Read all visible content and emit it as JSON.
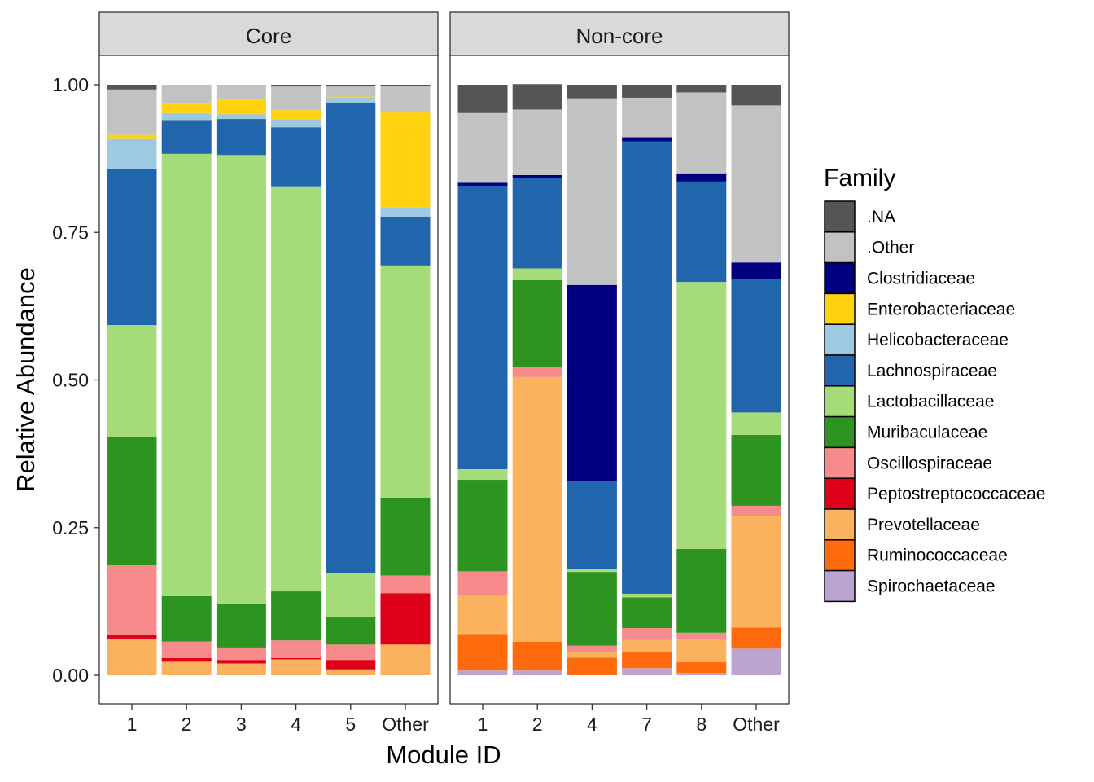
{
  "chart_data": {
    "type": "bar",
    "stacked": true,
    "ylabel": "Relative Abundance",
    "xlabel": "Module ID",
    "ylim": [
      0,
      1.05
    ],
    "yticks": [
      "0.00",
      "0.25",
      "0.50",
      "0.75",
      "1.00"
    ],
    "ytick_values": [
      0,
      0.25,
      0.5,
      0.75,
      1.0
    ],
    "legend_title": "Family",
    "legend_placement": "right",
    "families": [
      {
        "name": ".NA",
        "color": "#555555"
      },
      {
        "name": ".Other",
        "color": "#C2C2C2"
      },
      {
        "name": "Clostridiaceae",
        "color": "#000080"
      },
      {
        "name": "Enterobacteriaceae",
        "color": "#FFD10F"
      },
      {
        "name": "Helicobacteraceae",
        "color": "#9ECAE1"
      },
      {
        "name": "Lachnospiraceae",
        "color": "#2166AC"
      },
      {
        "name": "Lactobacillaceae",
        "color": "#A6DB7A"
      },
      {
        "name": "Muribaculaceae",
        "color": "#2E9421"
      },
      {
        "name": "Oscillospiraceae",
        "color": "#F78A8A"
      },
      {
        "name": "Peptostreptococcaceae",
        "color": "#DE0019"
      },
      {
        "name": "Prevotellaceae",
        "color": "#FAB25E"
      },
      {
        "name": "Ruminococcaceae",
        "color": "#FF6A0D"
      },
      {
        "name": "Spirochaetaceae",
        "color": "#BCA4D1"
      }
    ],
    "panels": [
      {
        "title": "Core",
        "categories": [
          "1",
          "2",
          "3",
          "4",
          "5",
          "Other"
        ],
        "stacks": [
          {
            "Prevotellaceae": 0.062,
            "Peptostreptococcaceae": 0.007,
            "Oscillospiraceae": 0.118,
            "Muribaculaceae": 0.216,
            "Lactobacillaceae": 0.19,
            "Lachnospiraceae": 0.265,
            "Helicobacteraceae": 0.05,
            "Enterobacteriaceae": 0.007,
            ".Other": 0.077,
            ".NA": 0.008
          },
          {
            "Prevotellaceae": 0.023,
            "Peptostreptococcaceae": 0.006,
            "Oscillospiraceae": 0.028,
            "Muribaculaceae": 0.077,
            "Lactobacillaceae": 0.749,
            "Lachnospiraceae": 0.057,
            "Helicobacteraceae": 0.012,
            "Enterobacteriaceae": 0.016,
            ".Other": 0.032
          },
          {
            "Prevotellaceae": 0.02,
            "Peptostreptococcaceae": 0.006,
            "Oscillospiraceae": 0.021,
            "Muribaculaceae": 0.073,
            "Lactobacillaceae": 0.761,
            "Lachnospiraceae": 0.061,
            "Helicobacteraceae": 0.008,
            "Enterobacteriaceae": 0.025,
            ".Other": 0.025
          },
          {
            "Prevotellaceae": 0.027,
            "Peptostreptococcaceae": 0.002,
            "Oscillospiraceae": 0.03,
            "Muribaculaceae": 0.083,
            "Lactobacillaceae": 0.686,
            "Lachnospiraceae": 0.1,
            "Helicobacteraceae": 0.013,
            "Enterobacteriaceae": 0.016,
            ".Other": 0.04,
            ".NA": 0.003
          },
          {
            "Prevotellaceae": 0.01,
            "Peptostreptococcaceae": 0.016,
            "Oscillospiraceae": 0.026,
            "Muribaculaceae": 0.047,
            "Lactobacillaceae": 0.074,
            "Lachnospiraceae": 0.797,
            "Helicobacteraceae": 0.008,
            "Enterobacteriaceae": 0.002,
            ".Other": 0.017,
            ".NA": 0.003
          },
          {
            "Prevotellaceae": 0.052,
            "Peptostreptococcaceae": 0.087,
            "Oscillospiraceae": 0.03,
            "Muribaculaceae": 0.132,
            "Lactobacillaceae": 0.393,
            "Lachnospiraceae": 0.082,
            "Helicobacteraceae": 0.016,
            "Enterobacteriaceae": 0.161,
            ".Other": 0.045,
            ".NA": 0.002
          }
        ]
      },
      {
        "title": "Non-core",
        "categories": [
          "1",
          "2",
          "4",
          "7",
          "8",
          "Other"
        ],
        "stacks": [
          {
            "Spirochaetaceae": 0.008,
            "Ruminococcaceae": 0.062,
            "Prevotellaceae": 0.066,
            "Oscillospiraceae": 0.04,
            "Muribaculaceae": 0.155,
            "Lactobacillaceae": 0.018,
            "Lachnospiraceae": 0.48,
            "Clostridiaceae": 0.005,
            ".Other": 0.118,
            ".NA": 0.048
          },
          {
            "Spirochaetaceae": 0.008,
            "Ruminococcaceae": 0.049,
            "Prevotellaceae": 0.448,
            "Oscillospiraceae": 0.017,
            "Muribaculaceae": 0.147,
            "Lactobacillaceae": 0.02,
            "Lachnospiraceae": 0.153,
            "Clostridiaceae": 0.005,
            ".Other": 0.111,
            ".NA": 0.043
          },
          {
            "Ruminococcaceae": 0.03,
            "Prevotellaceae": 0.01,
            "Oscillospiraceae": 0.01,
            "Muribaculaceae": 0.125,
            "Lactobacillaceae": 0.005,
            "Lachnospiraceae": 0.148,
            "Clostridiaceae": 0.333,
            ".Other": 0.316,
            ".NA": 0.023
          },
          {
            "Spirochaetaceae": 0.012,
            "Ruminococcaceae": 0.028,
            "Prevotellaceae": 0.02,
            "Oscillospiraceae": 0.02,
            "Muribaculaceae": 0.052,
            "Lactobacillaceae": 0.006,
            "Lachnospiraceae": 0.766,
            "Clostridiaceae": 0.007,
            ".Other": 0.067,
            ".NA": 0.022
          },
          {
            "Spirochaetaceae": 0.004,
            "Ruminococcaceae": 0.018,
            "Prevotellaceae": 0.04,
            "Oscillospiraceae": 0.01,
            "Muribaculaceae": 0.142,
            "Lactobacillaceae": 0.452,
            "Lachnospiraceae": 0.17,
            "Clostridiaceae": 0.014,
            ".Other": 0.137,
            ".NA": 0.013
          },
          {
            "Spirochaetaceae": 0.045,
            "Ruminococcaceae": 0.036,
            "Prevotellaceae": 0.189,
            "Oscillospiraceae": 0.017,
            "Muribaculaceae": 0.12,
            "Lactobacillaceae": 0.038,
            "Lachnospiraceae": 0.225,
            "Clostridiaceae": 0.029,
            ".Other": 0.266,
            ".NA": 0.035
          }
        ]
      }
    ]
  }
}
